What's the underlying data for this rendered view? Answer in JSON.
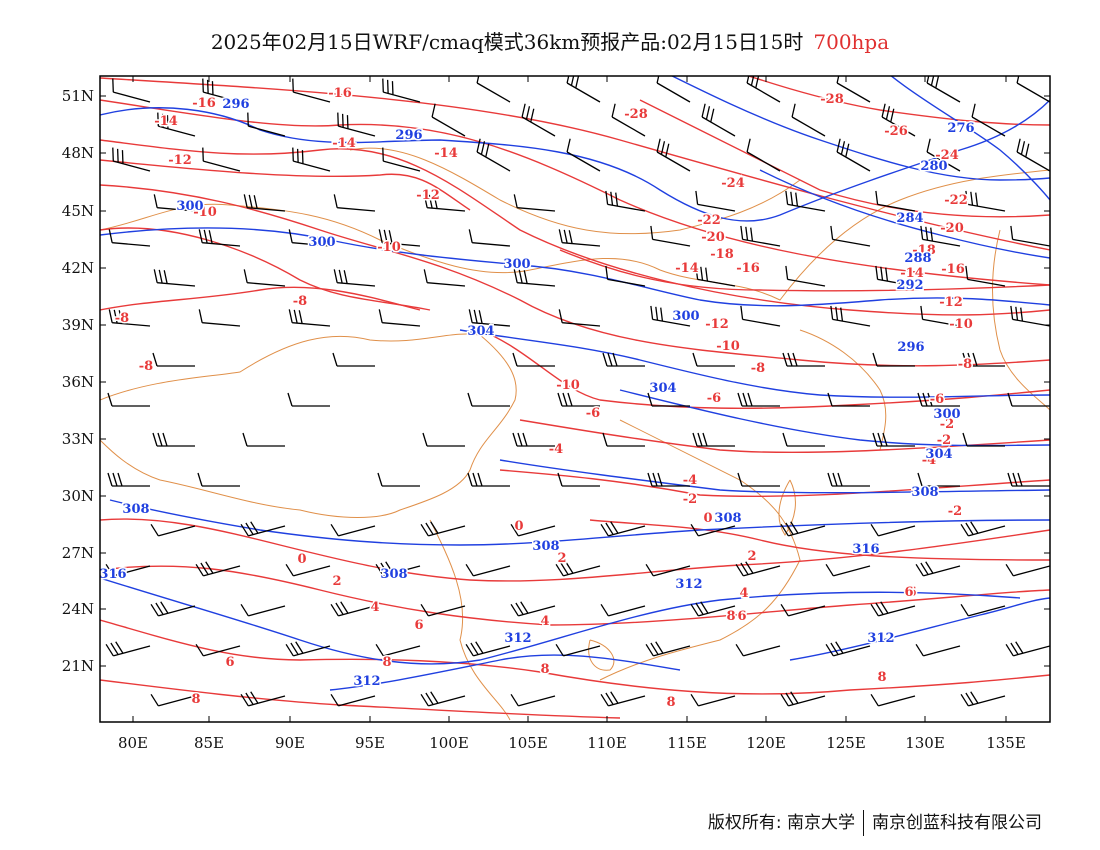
{
  "title": {
    "main": "2025年02月15日WRF/cmaq模式36km预报产品:02月15日15时",
    "level": "700hpa"
  },
  "axes": {
    "lat_labels": [
      "51N",
      "48N",
      "45N",
      "42N",
      "39N",
      "36N",
      "33N",
      "30N",
      "27N",
      "24N",
      "21N"
    ],
    "lon_labels": [
      "80E",
      "85E",
      "90E",
      "95E",
      "100E",
      "105E",
      "110E",
      "115E",
      "120E",
      "125E",
      "130E",
      "135E"
    ]
  },
  "colors": {
    "temperature": "#e83a3a",
    "geopotential": "#2040e0",
    "boundary": "#e0904a",
    "wind_barb": "#000000"
  },
  "temp_labels": [
    {
      "text": "-16"
    },
    {
      "text": "-16"
    },
    {
      "text": "-14"
    },
    {
      "text": "-14"
    },
    {
      "text": "-14"
    },
    {
      "text": "-12"
    },
    {
      "text": "-12"
    },
    {
      "text": "-10"
    },
    {
      "text": "-10"
    },
    {
      "text": "-8"
    },
    {
      "text": "-8"
    },
    {
      "text": "-28"
    },
    {
      "text": "-28"
    },
    {
      "text": "-26"
    },
    {
      "text": "-24"
    },
    {
      "text": "-24"
    },
    {
      "text": "-22"
    },
    {
      "text": "-22"
    },
    {
      "text": "-20"
    },
    {
      "text": "-20"
    },
    {
      "text": "-18"
    },
    {
      "text": "-18"
    },
    {
      "text": "-16"
    },
    {
      "text": "-16"
    },
    {
      "text": "-14"
    },
    {
      "text": "-14"
    },
    {
      "text": "-12"
    },
    {
      "text": "-12"
    },
    {
      "text": "-10"
    },
    {
      "text": "-10"
    },
    {
      "text": "-10"
    },
    {
      "text": "-8"
    },
    {
      "text": "-8"
    },
    {
      "text": "-8"
    },
    {
      "text": "-6"
    },
    {
      "text": "-6"
    },
    {
      "text": "-6"
    },
    {
      "text": "-4"
    },
    {
      "text": "-4"
    },
    {
      "text": "-2"
    },
    {
      "text": "0"
    },
    {
      "text": "-2"
    },
    {
      "text": "-4"
    },
    {
      "text": "-2"
    },
    {
      "text": "0"
    },
    {
      "text": "2"
    },
    {
      "text": "2"
    },
    {
      "text": "4"
    },
    {
      "text": "4"
    },
    {
      "text": "6"
    },
    {
      "text": "6"
    },
    {
      "text": "6"
    },
    {
      "text": "8"
    },
    {
      "text": "8"
    },
    {
      "text": "8"
    },
    {
      "text": "8"
    },
    {
      "text": "0"
    },
    {
      "text": "2"
    },
    {
      "text": "4"
    },
    {
      "text": "6"
    },
    {
      "text": "8"
    },
    {
      "text": "8"
    },
    {
      "text": "6"
    },
    {
      "text": "-2"
    }
  ],
  "geo_labels": [
    {
      "text": "296"
    },
    {
      "text": "296"
    },
    {
      "text": "300"
    },
    {
      "text": "300"
    },
    {
      "text": "300"
    },
    {
      "text": "300"
    },
    {
      "text": "304"
    },
    {
      "text": "304"
    },
    {
      "text": "276"
    },
    {
      "text": "280"
    },
    {
      "text": "284"
    },
    {
      "text": "288"
    },
    {
      "text": "292"
    },
    {
      "text": "296"
    },
    {
      "text": "300"
    },
    {
      "text": "304"
    },
    {
      "text": "308"
    },
    {
      "text": "308"
    },
    {
      "text": "308"
    },
    {
      "text": "308"
    },
    {
      "text": "312"
    },
    {
      "text": "312"
    },
    {
      "text": "312"
    },
    {
      "text": "312"
    },
    {
      "text": "316"
    },
    {
      "text": "316"
    },
    {
      "text": "308"
    }
  ],
  "footer": {
    "left": "版权所有: 南京大学",
    "right": "南京创蓝科技有限公司"
  }
}
